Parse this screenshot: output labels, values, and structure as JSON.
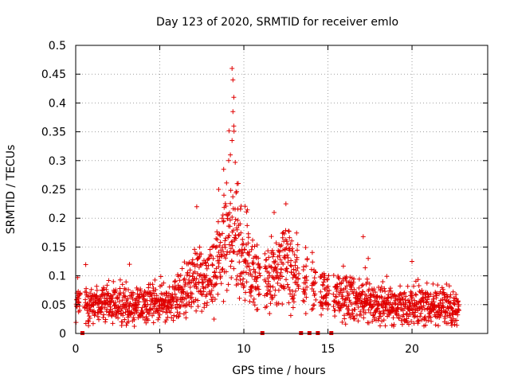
{
  "chart_data": {
    "type": "scatter",
    "title": "Day 123 of 2020, SRMTID for receiver emlo",
    "xlabel": "GPS time / hours",
    "ylabel": "SRMTID / TECUs",
    "xlim": [
      0,
      24.5
    ],
    "ylim": [
      0,
      0.5
    ],
    "x_ticks": [
      0,
      5,
      10,
      15,
      20
    ],
    "x_tick_labels": [
      "0",
      "5",
      "10",
      "15",
      "20"
    ],
    "y_ticks": [
      0,
      0.05,
      0.1,
      0.15,
      0.2,
      0.25,
      0.3,
      0.35,
      0.4,
      0.45,
      0.5
    ],
    "y_tick_labels": [
      "0",
      "0.05",
      "0.1",
      "0.15",
      "0.2",
      "0.25",
      "0.3",
      "0.35",
      "0.4",
      "0.45",
      "0.5"
    ],
    "grid": true,
    "marker": "+",
    "color": "#e00000",
    "gap_markers_x": [
      0.4,
      11.1,
      13.4,
      13.9,
      14.4,
      15.2
    ],
    "series": [
      {
        "name": "SRMTID",
        "profile": [
          {
            "x": 0.0,
            "y": 0.05
          },
          {
            "x": 1.0,
            "y": 0.055
          },
          {
            "x": 2.0,
            "y": 0.05
          },
          {
            "x": 3.0,
            "y": 0.05
          },
          {
            "x": 4.0,
            "y": 0.052
          },
          {
            "x": 5.0,
            "y": 0.052
          },
          {
            "x": 6.0,
            "y": 0.06
          },
          {
            "x": 7.0,
            "y": 0.09
          },
          {
            "x": 8.0,
            "y": 0.1
          },
          {
            "x": 8.8,
            "y": 0.15
          },
          {
            "x": 9.3,
            "y": 0.2
          },
          {
            "x": 9.8,
            "y": 0.14
          },
          {
            "x": 10.5,
            "y": 0.1
          },
          {
            "x": 11.5,
            "y": 0.09
          },
          {
            "x": 12.5,
            "y": 0.12
          },
          {
            "x": 13.5,
            "y": 0.09
          },
          {
            "x": 14.5,
            "y": 0.07
          },
          {
            "x": 16.0,
            "y": 0.065
          },
          {
            "x": 17.0,
            "y": 0.06
          },
          {
            "x": 18.0,
            "y": 0.05
          },
          {
            "x": 20.0,
            "y": 0.045
          },
          {
            "x": 21.0,
            "y": 0.05
          },
          {
            "x": 22.8,
            "y": 0.045
          }
        ],
        "highlights": [
          {
            "x": 9.3,
            "y": 0.46
          },
          {
            "x": 9.35,
            "y": 0.44
          },
          {
            "x": 9.4,
            "y": 0.41
          },
          {
            "x": 9.35,
            "y": 0.385
          },
          {
            "x": 9.4,
            "y": 0.36
          },
          {
            "x": 9.3,
            "y": 0.335
          },
          {
            "x": 9.2,
            "y": 0.31
          },
          {
            "x": 9.1,
            "y": 0.3
          },
          {
            "x": 8.8,
            "y": 0.285
          },
          {
            "x": 9.6,
            "y": 0.26
          },
          {
            "x": 8.5,
            "y": 0.25
          },
          {
            "x": 12.5,
            "y": 0.225
          },
          {
            "x": 11.8,
            "y": 0.21
          },
          {
            "x": 7.2,
            "y": 0.22
          },
          {
            "x": 17.1,
            "y": 0.168
          },
          {
            "x": 20.0,
            "y": 0.125
          },
          {
            "x": 3.2,
            "y": 0.12
          }
        ]
      }
    ]
  }
}
